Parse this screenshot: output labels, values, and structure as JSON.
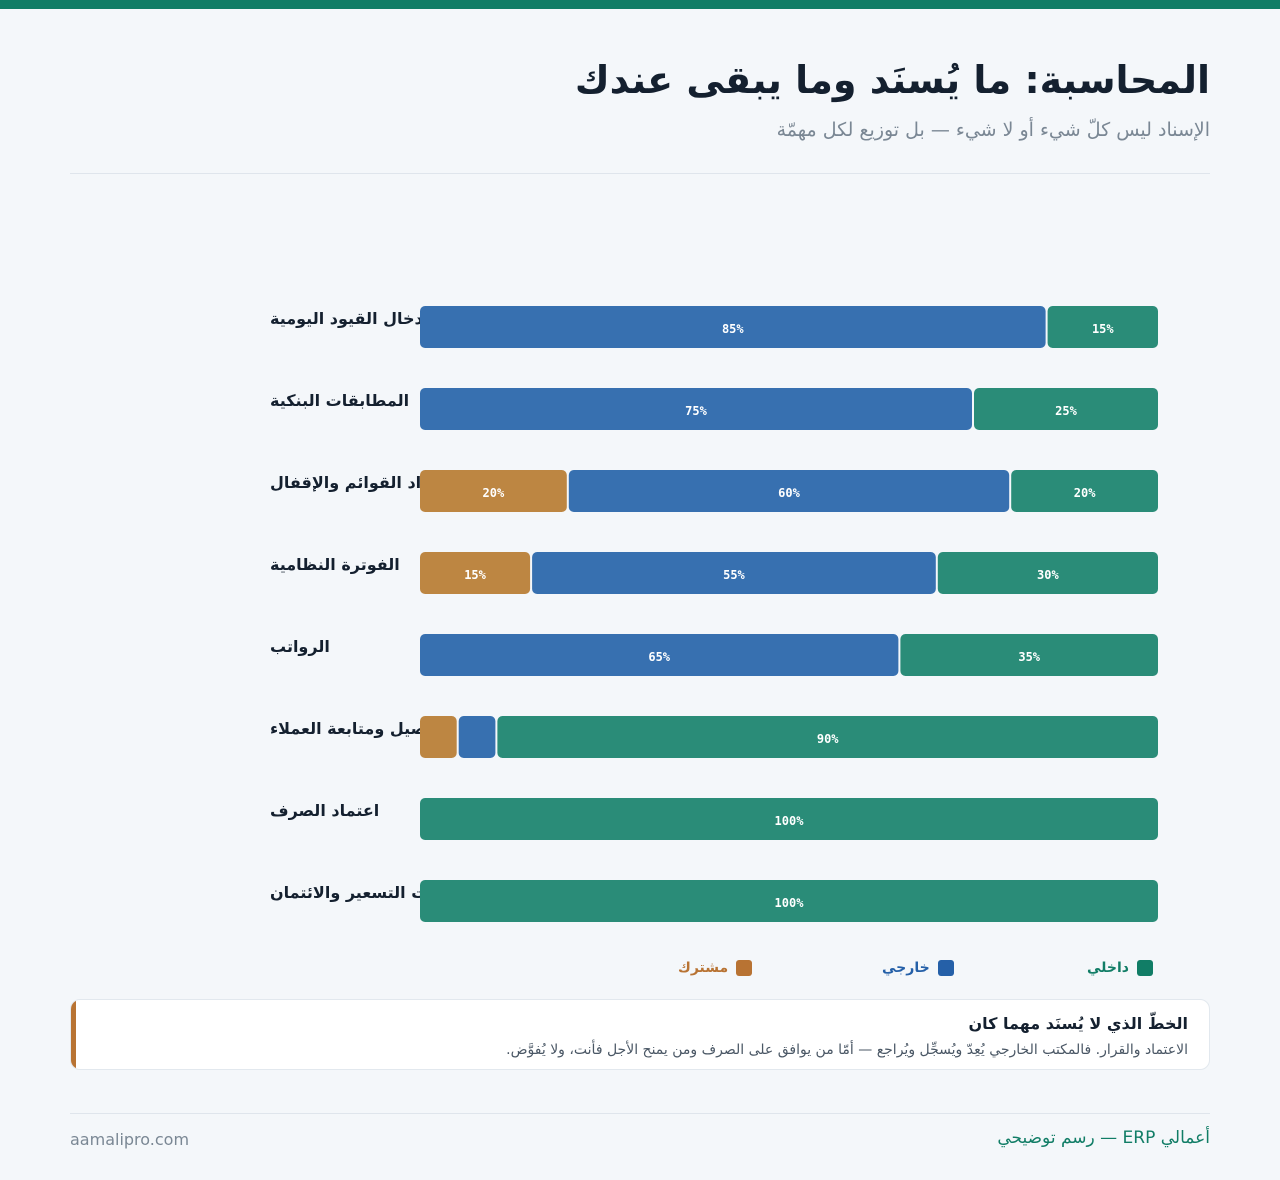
{
  "header": {
    "title": "المحاسبة: ما يُسنَد وما يبقى عندك",
    "subtitle": "الإسناد ليس كلّ شيء أو لا شيء — بل توزيع لكل مهمّة"
  },
  "colors": {
    "topbar": "#117d66",
    "internal": "#2a8c78",
    "external": "#3770b0",
    "shared": "#bd8642",
    "legend_internal": "#117d66",
    "legend_external": "#2560a8",
    "legend_shared": "#b87333"
  },
  "chart_data": {
    "type": "bar",
    "orientation": "horizontal",
    "stacked": true,
    "categories": [
      "إدخال القيود اليومية",
      "المطابقات البنكية",
      "إعداد القوائم والإقفال",
      "الفوترة النظامية",
      "الرواتب",
      "التحصيل ومتابعة العملاء",
      "اعتماد الصرف",
      "قرارات التسعير والائتمان"
    ],
    "series": [
      {
        "name": "مشترك",
        "values": [
          0,
          0,
          20,
          15,
          0,
          5,
          0,
          0
        ]
      },
      {
        "name": "خارجي",
        "values": [
          85,
          75,
          60,
          55,
          65,
          5,
          0,
          0
        ]
      },
      {
        "name": "داخلي",
        "values": [
          15,
          25,
          20,
          30,
          35,
          90,
          100,
          100
        ]
      }
    ],
    "xlim": [
      0,
      100
    ],
    "value_suffix": "%",
    "legend": [
      "داخلي",
      "خارجي",
      "مشترك"
    ],
    "legend_position": "bottom"
  },
  "note": {
    "title": "الخطّ الذي لا يُسنَد مهما كان",
    "body": "الاعتماد والقرار. فالمكتب الخارجي يُعِدّ ويُسجِّل ويُراجع — أمّا من يوافق على الصرف ومن يمنح الأجل فأنت، ولا يُفوَّض."
  },
  "footer": {
    "brand": "أعمالي ERP — رسم توضيحي",
    "site": "aamalipro.com"
  }
}
